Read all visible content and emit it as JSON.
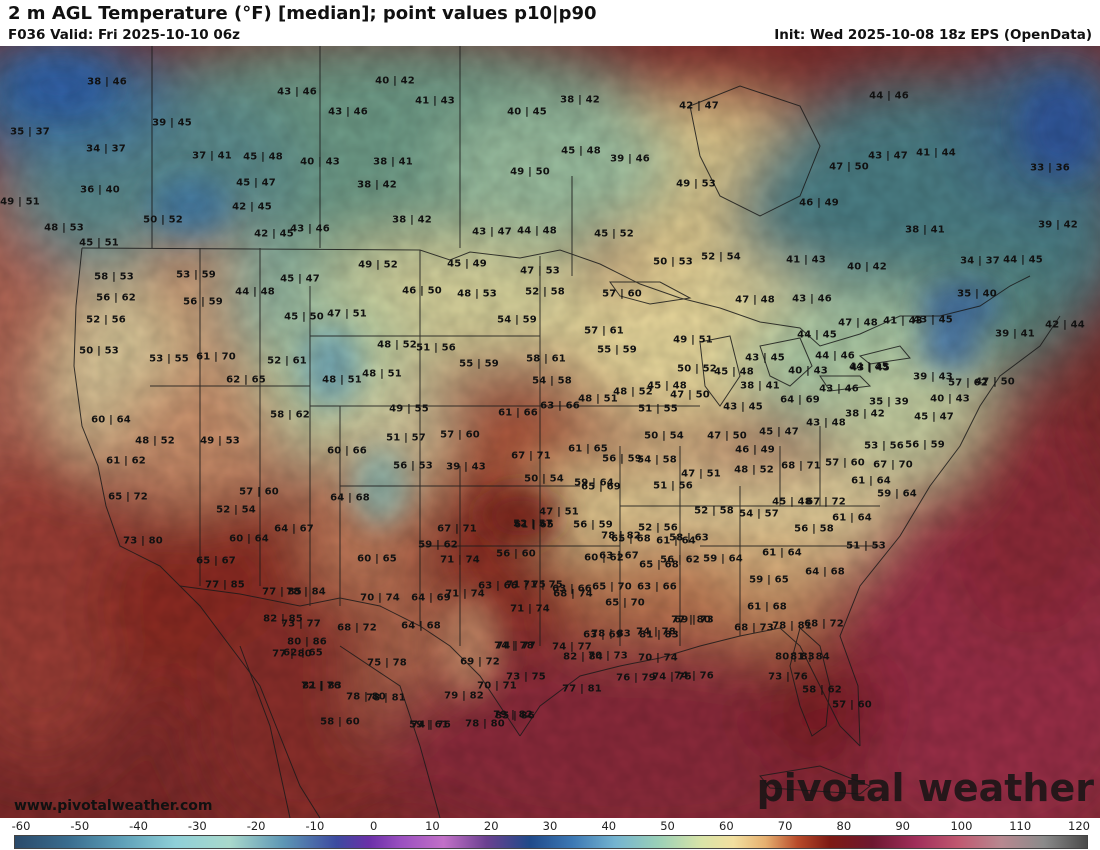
{
  "header": {
    "title": "2 m AGL Temperature (°F) [median]; point values p10|p90",
    "valid": "F036 Valid: Fri 2025-10-10 06z",
    "init": "Init: Wed 2025-10-08 18z EPS (OpenData)"
  },
  "branding": {
    "website": "www.pivotalweather.com",
    "watermark": "pivotal weather"
  },
  "colorbar": {
    "ticks": [
      "-60",
      "-50",
      "-40",
      "-30",
      "-20",
      "-10",
      "0",
      "10",
      "20",
      "30",
      "40",
      "50",
      "60",
      "70",
      "80",
      "90",
      "100",
      "110",
      "120"
    ],
    "min": -60,
    "max": 120
  },
  "points": [
    "38|46",
    "40|42",
    "43|46",
    "41|43",
    "38|42",
    "42|47",
    "44|46",
    "35|37",
    "39|45",
    "43|46",
    "40|45",
    "45|48",
    "39|46",
    "34|37",
    "37|41",
    "45|48",
    "40|43",
    "38|41",
    "49|50",
    "43|47",
    "41|44",
    "47|50",
    "33|36",
    "36|40",
    "45|47",
    "38|42",
    "49|53",
    "46|49",
    "49|51",
    "42|45",
    "50|52",
    "38|42",
    "48|53",
    "43|46",
    "42|45",
    "43|47",
    "44|48",
    "45|52",
    "38|41",
    "39|42",
    "45|51",
    "52|54",
    "50|53",
    "41|43",
    "40|42",
    "34|37",
    "44|45",
    "53|59",
    "49|52",
    "45|49",
    "47|53",
    "35|40",
    "58|53",
    "45|47",
    "44|48",
    "46|50",
    "48|53",
    "52|58",
    "57|60",
    "47|48",
    "43|46",
    "56|62",
    "56|59",
    "41|43",
    "43|45",
    "42|44",
    "52|56",
    "45|50",
    "47|51",
    "54|59",
    "57|61",
    "44|45",
    "47|48",
    "39|41",
    "50|53",
    "48|52",
    "51|56",
    "49|51",
    "55|59",
    "43|45",
    "44|46",
    "43|45",
    "53|55",
    "61|70",
    "52|61",
    "48|51",
    "48|51",
    "55|59",
    "58|61",
    "50|52",
    "45|48",
    "40|43",
    "44|45",
    "39|43",
    "47|50",
    "64|69",
    "62|65",
    "54|58",
    "48|52",
    "45|48",
    "38|41",
    "43|46",
    "57|62",
    "60|64",
    "48|51",
    "47|50",
    "35|39",
    "40|43",
    "49|55",
    "61|66",
    "63|66",
    "51|55",
    "43|45",
    "38|42",
    "45|47",
    "58|62",
    "43|48",
    "48|52",
    "49|53",
    "51|57",
    "57|60",
    "50|54",
    "47|50",
    "45|47",
    "53|56",
    "56|59",
    "61|62",
    "60|66",
    "61|65",
    "56|59",
    "54|58",
    "46|49",
    "59|64",
    "67|71",
    "39|43",
    "56|53",
    "57|60",
    "67|70",
    "65|69",
    "50|54",
    "47|51",
    "48|52",
    "68|71",
    "65|72",
    "57|60",
    "52|54",
    "51|56",
    "61|64",
    "59|64",
    "64|68",
    "47|51",
    "45|48",
    "67|72",
    "52|57",
    "52|58",
    "54|57",
    "61|64",
    "51|53",
    "64|67",
    "67|71",
    "61|65",
    "56|59",
    "52|56",
    "56|58",
    "73|80",
    "60|64",
    "60|65",
    "59|62",
    "58|63",
    "61|64",
    "65|68",
    "78|82",
    "65|67",
    "71|74",
    "56|60",
    "61|64",
    "56|62",
    "63|67",
    "64|68",
    "60|62",
    "63|66",
    "59|64",
    "65|68",
    "77|85",
    "78|84",
    "71|75",
    "71|75",
    "65|70",
    "63|66",
    "59|65",
    "77|85",
    "70|74",
    "64|69",
    "63|66",
    "61|68",
    "73|77",
    "71|74",
    "71|74",
    "68|74",
    "65|70",
    "69|73",
    "82|85",
    "68|72",
    "64|68",
    "74|78",
    "68|73",
    "74|77",
    "63|69",
    "68|72",
    "80|86",
    "74|78",
    "70|73",
    "70|74",
    "78|83",
    "77|80",
    "82|84",
    "81|83",
    "78|81",
    "80|83",
    "77|80",
    "74|75",
    "62|65",
    "72|76",
    "74|77",
    "81|84",
    "75|78",
    "69|72",
    "70|71",
    "73|75",
    "77|81",
    "76|79",
    "74|76",
    "81|83",
    "73|76",
    "78|81",
    "79|82",
    "58|62",
    "58|60",
    "79|82",
    "85|86",
    "57|60",
    "74|76",
    "78|80",
    "78|80",
    "59|61"
  ]
}
